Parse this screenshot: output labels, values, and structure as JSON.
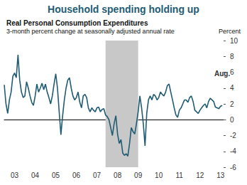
{
  "chart_data": {
    "type": "line",
    "title": "Household spending holding up",
    "subtitle": [
      "Real Personal Consumption Expenditures",
      "3-month percent change at seasonally adjusted annual rate"
    ],
    "ylabel": "Percent",
    "annotation": "Aug.",
    "color": "#1f5c74",
    "shaded": [
      2007.917,
      2009.5
    ],
    "x": [
      2003.0,
      2003.083,
      2003.167,
      2003.25,
      2003.333,
      2003.417,
      2003.5,
      2003.583,
      2003.667,
      2003.75,
      2003.833,
      2003.917,
      2004.0,
      2004.083,
      2004.167,
      2004.25,
      2004.333,
      2004.417,
      2004.5,
      2004.583,
      2004.667,
      2004.75,
      2004.833,
      2004.917,
      2005.0,
      2005.083,
      2005.167,
      2005.25,
      2005.333,
      2005.417,
      2005.5,
      2005.583,
      2005.667,
      2005.75,
      2005.833,
      2005.917,
      2006.0,
      2006.083,
      2006.167,
      2006.25,
      2006.333,
      2006.417,
      2006.5,
      2006.583,
      2006.667,
      2006.75,
      2006.833,
      2006.917,
      2007.0,
      2007.083,
      2007.167,
      2007.25,
      2007.333,
      2007.417,
      2007.5,
      2007.583,
      2007.667,
      2007.75,
      2007.833,
      2007.917,
      2008.0,
      2008.083,
      2008.167,
      2008.25,
      2008.333,
      2008.417,
      2008.5,
      2008.583,
      2008.667,
      2008.75,
      2008.833,
      2008.917,
      2009.0,
      2009.083,
      2009.167,
      2009.25,
      2009.333,
      2009.417,
      2009.5,
      2009.583,
      2009.667,
      2009.75,
      2009.833,
      2009.917,
      2010.0,
      2010.083,
      2010.167,
      2010.25,
      2010.333,
      2010.417,
      2010.5,
      2010.583,
      2010.667,
      2010.75,
      2010.833,
      2010.917,
      2011.0,
      2011.083,
      2011.167,
      2011.25,
      2011.333,
      2011.417,
      2011.5,
      2011.583,
      2011.667,
      2011.75,
      2011.833,
      2011.917,
      2012.0,
      2012.083,
      2012.167,
      2012.25,
      2012.333,
      2012.417,
      2012.5,
      2012.583,
      2012.667,
      2012.75,
      2012.833,
      2012.917,
      2013.0,
      2013.083,
      2013.167,
      2013.25,
      2013.333,
      2013.417,
      2013.5,
      2013.583
    ],
    "values": [
      4.4,
      2.0,
      0.8,
      2.5,
      3.5,
      5.5,
      5.9,
      5.3,
      8.2,
      5.0,
      3.5,
      2.8,
      3.0,
      4.8,
      4.0,
      3.0,
      2.2,
      1.8,
      3.0,
      4.5,
      3.5,
      4.0,
      4.6,
      3.8,
      4.5,
      3.5,
      2.8,
      2.0,
      3.0,
      4.5,
      5.8,
      4.0,
      1.0,
      -1.9,
      0.5,
      2.5,
      4.0,
      5.0,
      5.3,
      4.0,
      3.0,
      2.5,
      2.8,
      3.5,
      2.2,
      1.5,
      3.0,
      3.2,
      2.8,
      1.5,
      1.0,
      1.5,
      1.2,
      1.0,
      1.5,
      1.6,
      1.0,
      1.3,
      1.4,
      0.6,
      0.4,
      0.0,
      -1.0,
      -2.0,
      -0.5,
      0.5,
      -1.8,
      -3.0,
      -2.5,
      -4.2,
      -4.5,
      -4.3,
      -4.6,
      -3.0,
      -1.0,
      -1.5,
      -1.8,
      -0.5,
      1.0,
      3.0,
      1.5,
      -0.5,
      -3.3,
      0.8,
      2.5,
      3.0,
      2.5,
      3.2,
      3.0,
      2.5,
      2.8,
      3.5,
      3.2,
      3.0,
      3.5,
      4.3,
      4.5,
      3.5,
      2.5,
      1.5,
      0.6,
      0.3,
      1.2,
      1.5,
      2.0,
      2.5,
      2.5,
      2.2,
      2.8,
      3.0,
      2.3,
      1.2,
      1.0,
      0.8,
      1.2,
      1.5,
      1.8,
      2.0,
      1.5,
      2.3,
      2.7,
      2.5,
      2.3,
      1.6,
      1.5,
      1.4,
      1.7,
      1.8
    ],
    "xlim": [
      2003,
      2013.75
    ],
    "xticks": [
      {
        "value": 2003.5,
        "label": "03"
      },
      {
        "value": 2004.5,
        "label": "04"
      },
      {
        "value": 2005.5,
        "label": "05"
      },
      {
        "value": 2006.5,
        "label": "06"
      },
      {
        "value": 2007.5,
        "label": "07"
      },
      {
        "value": 2008.5,
        "label": "08"
      },
      {
        "value": 2009.5,
        "label": "09"
      },
      {
        "value": 2010.5,
        "label": "10"
      },
      {
        "value": 2011.5,
        "label": "11"
      },
      {
        "value": 2012.5,
        "label": "12"
      },
      {
        "value": 2013.5,
        "label": "13"
      }
    ],
    "ylim": [
      -6,
      10
    ],
    "yticks": [
      -6,
      -4,
      -2,
      0,
      2,
      4,
      6,
      8,
      10
    ],
    "grid": false
  }
}
